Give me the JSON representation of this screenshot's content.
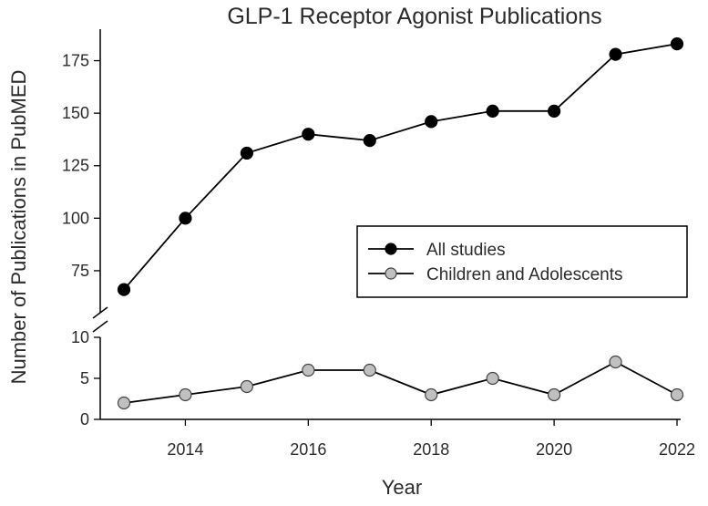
{
  "chart_data": {
    "type": "line",
    "title": "GLP-1 Receptor Agonist Publications",
    "xlabel": "Year",
    "ylabel": "Number of Publications in PubMED",
    "x": [
      2013,
      2014,
      2015,
      2016,
      2017,
      2018,
      2019,
      2020,
      2021,
      2022
    ],
    "x_ticks": [
      "2014",
      "2016",
      "2018",
      "2020",
      "2022"
    ],
    "xlim": [
      2013,
      2022
    ],
    "broken_y_axis": true,
    "y_panels": [
      {
        "panel": "upper",
        "ylim": [
          55,
          190
        ],
        "ticks": [
          "75",
          "100",
          "125",
          "150",
          "175"
        ]
      },
      {
        "panel": "lower",
        "ylim": [
          0,
          10
        ],
        "ticks": [
          "0",
          "5",
          "10"
        ]
      }
    ],
    "series": [
      {
        "name": "All studies",
        "panel": "upper",
        "marker_color": "#000000",
        "values": [
          66,
          100,
          131,
          140,
          137,
          146,
          151,
          151,
          178,
          183
        ]
      },
      {
        "name": "Children and Adolescents",
        "panel": "lower",
        "marker_color": "#c0c0c0",
        "values": [
          2,
          3,
          4,
          6,
          6,
          3,
          5,
          3,
          7,
          3
        ]
      }
    ],
    "legend_position": "center-right"
  }
}
